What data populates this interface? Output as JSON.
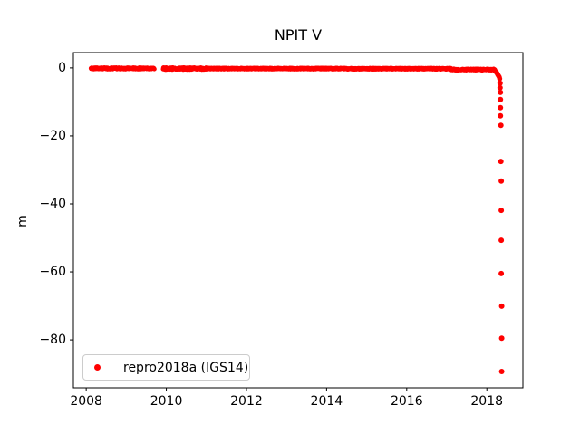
{
  "figure": {
    "background": "#ffffff",
    "text_color": "#000000",
    "spine_color": "#000000"
  },
  "chart_data": {
    "type": "scatter",
    "title": "NPIT V",
    "xlabel": "",
    "ylabel": "m",
    "grid": false,
    "marker_color": "#ff0000",
    "marker_size_px": 6,
    "xlim": [
      2007.68,
      2018.9
    ],
    "ylim": [
      -94.1,
      4.5
    ],
    "xticks": [
      {
        "value": 2008,
        "label": "2008"
      },
      {
        "value": 2010,
        "label": "2010"
      },
      {
        "value": 2012,
        "label": "2012"
      },
      {
        "value": 2014,
        "label": "2014"
      },
      {
        "value": 2016,
        "label": "2016"
      },
      {
        "value": 2018,
        "label": "2018"
      }
    ],
    "yticks": [
      {
        "value": 0,
        "label": "0"
      },
      {
        "value": -20,
        "label": "−20"
      },
      {
        "value": -40,
        "label": "−40"
      },
      {
        "value": -60,
        "label": "−60"
      },
      {
        "value": -80,
        "label": "−80"
      }
    ],
    "legend": {
      "position": "lower left",
      "entries": [
        {
          "label": "repro2018a (IGS14)",
          "marker": "dot",
          "color": "#ff0000"
        }
      ]
    },
    "series": [
      {
        "name": "repro2018a (IGS14)",
        "color": "#ff0000",
        "band_segments": [
          {
            "x_start": 2008.12,
            "x_end": 2009.7,
            "y_mean": -0.15,
            "y_noise": 0.22
          },
          {
            "x_start": 2009.92,
            "x_end": 2011.0,
            "y_mean": -0.2,
            "y_noise": 0.3
          },
          {
            "x_start": 2011.0,
            "x_end": 2014.5,
            "y_mean": -0.2,
            "y_noise": 0.18
          },
          {
            "x_start": 2014.5,
            "x_end": 2017.1,
            "y_mean": -0.25,
            "y_noise": 0.18
          },
          {
            "x_start": 2017.1,
            "x_end": 2018.2,
            "y_mean": -0.5,
            "y_noise": 0.22
          }
        ],
        "tail_points": [
          [
            2018.19,
            -0.7
          ],
          [
            2018.21,
            -0.9
          ],
          [
            2018.23,
            -1.2
          ],
          [
            2018.25,
            -1.5
          ],
          [
            2018.27,
            -1.9
          ],
          [
            2018.29,
            -2.3
          ],
          [
            2018.31,
            -2.7
          ],
          [
            2018.32,
            -3.2
          ]
        ],
        "drop_points": [
          [
            2018.33,
            -4.5
          ],
          [
            2018.33,
            -5.8
          ],
          [
            2018.34,
            -7.2
          ],
          [
            2018.34,
            -9.3
          ],
          [
            2018.34,
            -11.7
          ],
          [
            2018.34,
            -14.1
          ],
          [
            2018.35,
            -16.9
          ],
          [
            2018.35,
            -27.5
          ],
          [
            2018.36,
            -33.3
          ],
          [
            2018.36,
            -41.9
          ],
          [
            2018.36,
            -50.7
          ],
          [
            2018.36,
            -60.5
          ],
          [
            2018.37,
            -70.1
          ],
          [
            2018.37,
            -79.5
          ],
          [
            2018.37,
            -89.3
          ]
        ]
      }
    ]
  }
}
